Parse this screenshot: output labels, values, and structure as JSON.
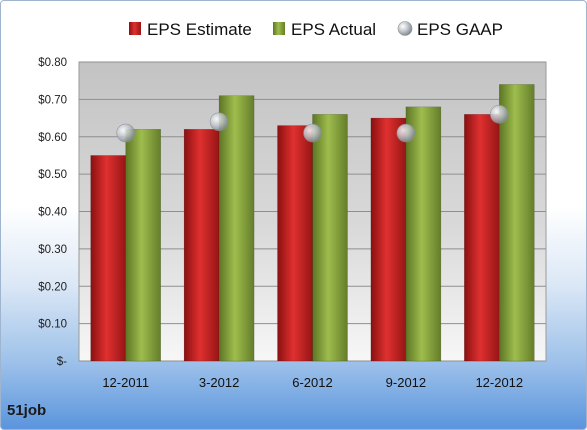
{
  "company": "51job",
  "chart_data": {
    "type": "bar",
    "categories": [
      "12-2011",
      "3-2012",
      "6-2012",
      "9-2012",
      "12-2012"
    ],
    "series": [
      {
        "name": "EPS Estimate",
        "type": "bar",
        "color": "#c0201f",
        "values": [
          0.55,
          0.62,
          0.63,
          0.65,
          0.66
        ]
      },
      {
        "name": "EPS Actual",
        "type": "bar",
        "color": "#7f9b36",
        "values": [
          0.62,
          0.71,
          0.66,
          0.68,
          0.74
        ]
      },
      {
        "name": "EPS GAAP",
        "type": "marker",
        "color": "#a9b0b8",
        "values": [
          0.61,
          0.64,
          0.61,
          0.61,
          0.66
        ]
      }
    ],
    "ylim": [
      0,
      0.8
    ],
    "yticks": [
      0,
      0.1,
      0.2,
      0.3,
      0.4,
      0.5,
      0.6,
      0.7,
      0.8
    ],
    "ytick_labels": [
      "$-",
      "$0.10",
      "$0.20",
      "$0.30",
      "$0.40",
      "$0.50",
      "$0.60",
      "$0.70",
      "$0.80"
    ],
    "grid": true,
    "legend_position": "top"
  }
}
